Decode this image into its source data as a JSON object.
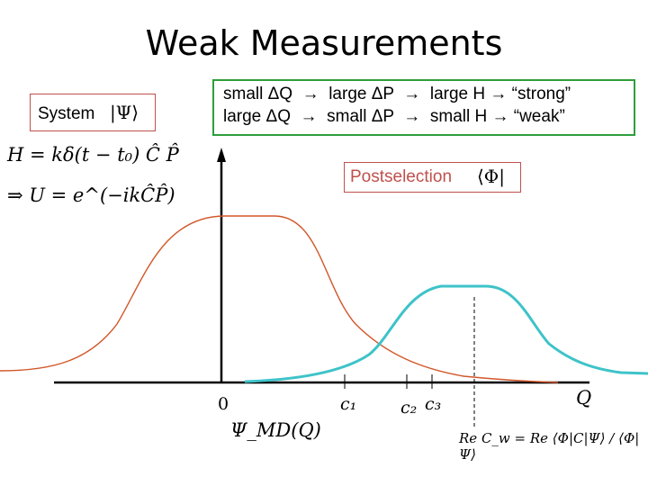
{
  "title": "Weak Measurements",
  "system": {
    "label": "System",
    "ket": "|Ψ⟩"
  },
  "relations": {
    "line1": "small ΔQ  →  large ΔP  →  large H → “strong”",
    "line2": "large ΔQ  →  small ΔP  →  small H → “weak”"
  },
  "postselection": {
    "label": "Postselection",
    "bra": "⟨Φ|"
  },
  "equations": {
    "hamiltonian": "H = kδ(t − t₀) Ĉ P̂",
    "unitary": "⇒ U = e^(−ikĈP̂)"
  },
  "axis_labels": {
    "origin": "0",
    "c1": "c₁",
    "c2": "c₂",
    "c3": "c₃",
    "x_axis": "Q",
    "curve_label": "Ψ_MD(Q)",
    "weak_value": "Re C_w = Re ⟨Φ|C|Ψ⟩ / ⟨Φ|Ψ⟩"
  },
  "colors": {
    "title_text": "#000000",
    "red_box": "#c0504d",
    "green_box": "#2e9e3b",
    "initial_curve": "#d2572a",
    "shifted_curve": "#3ec3c9"
  }
}
